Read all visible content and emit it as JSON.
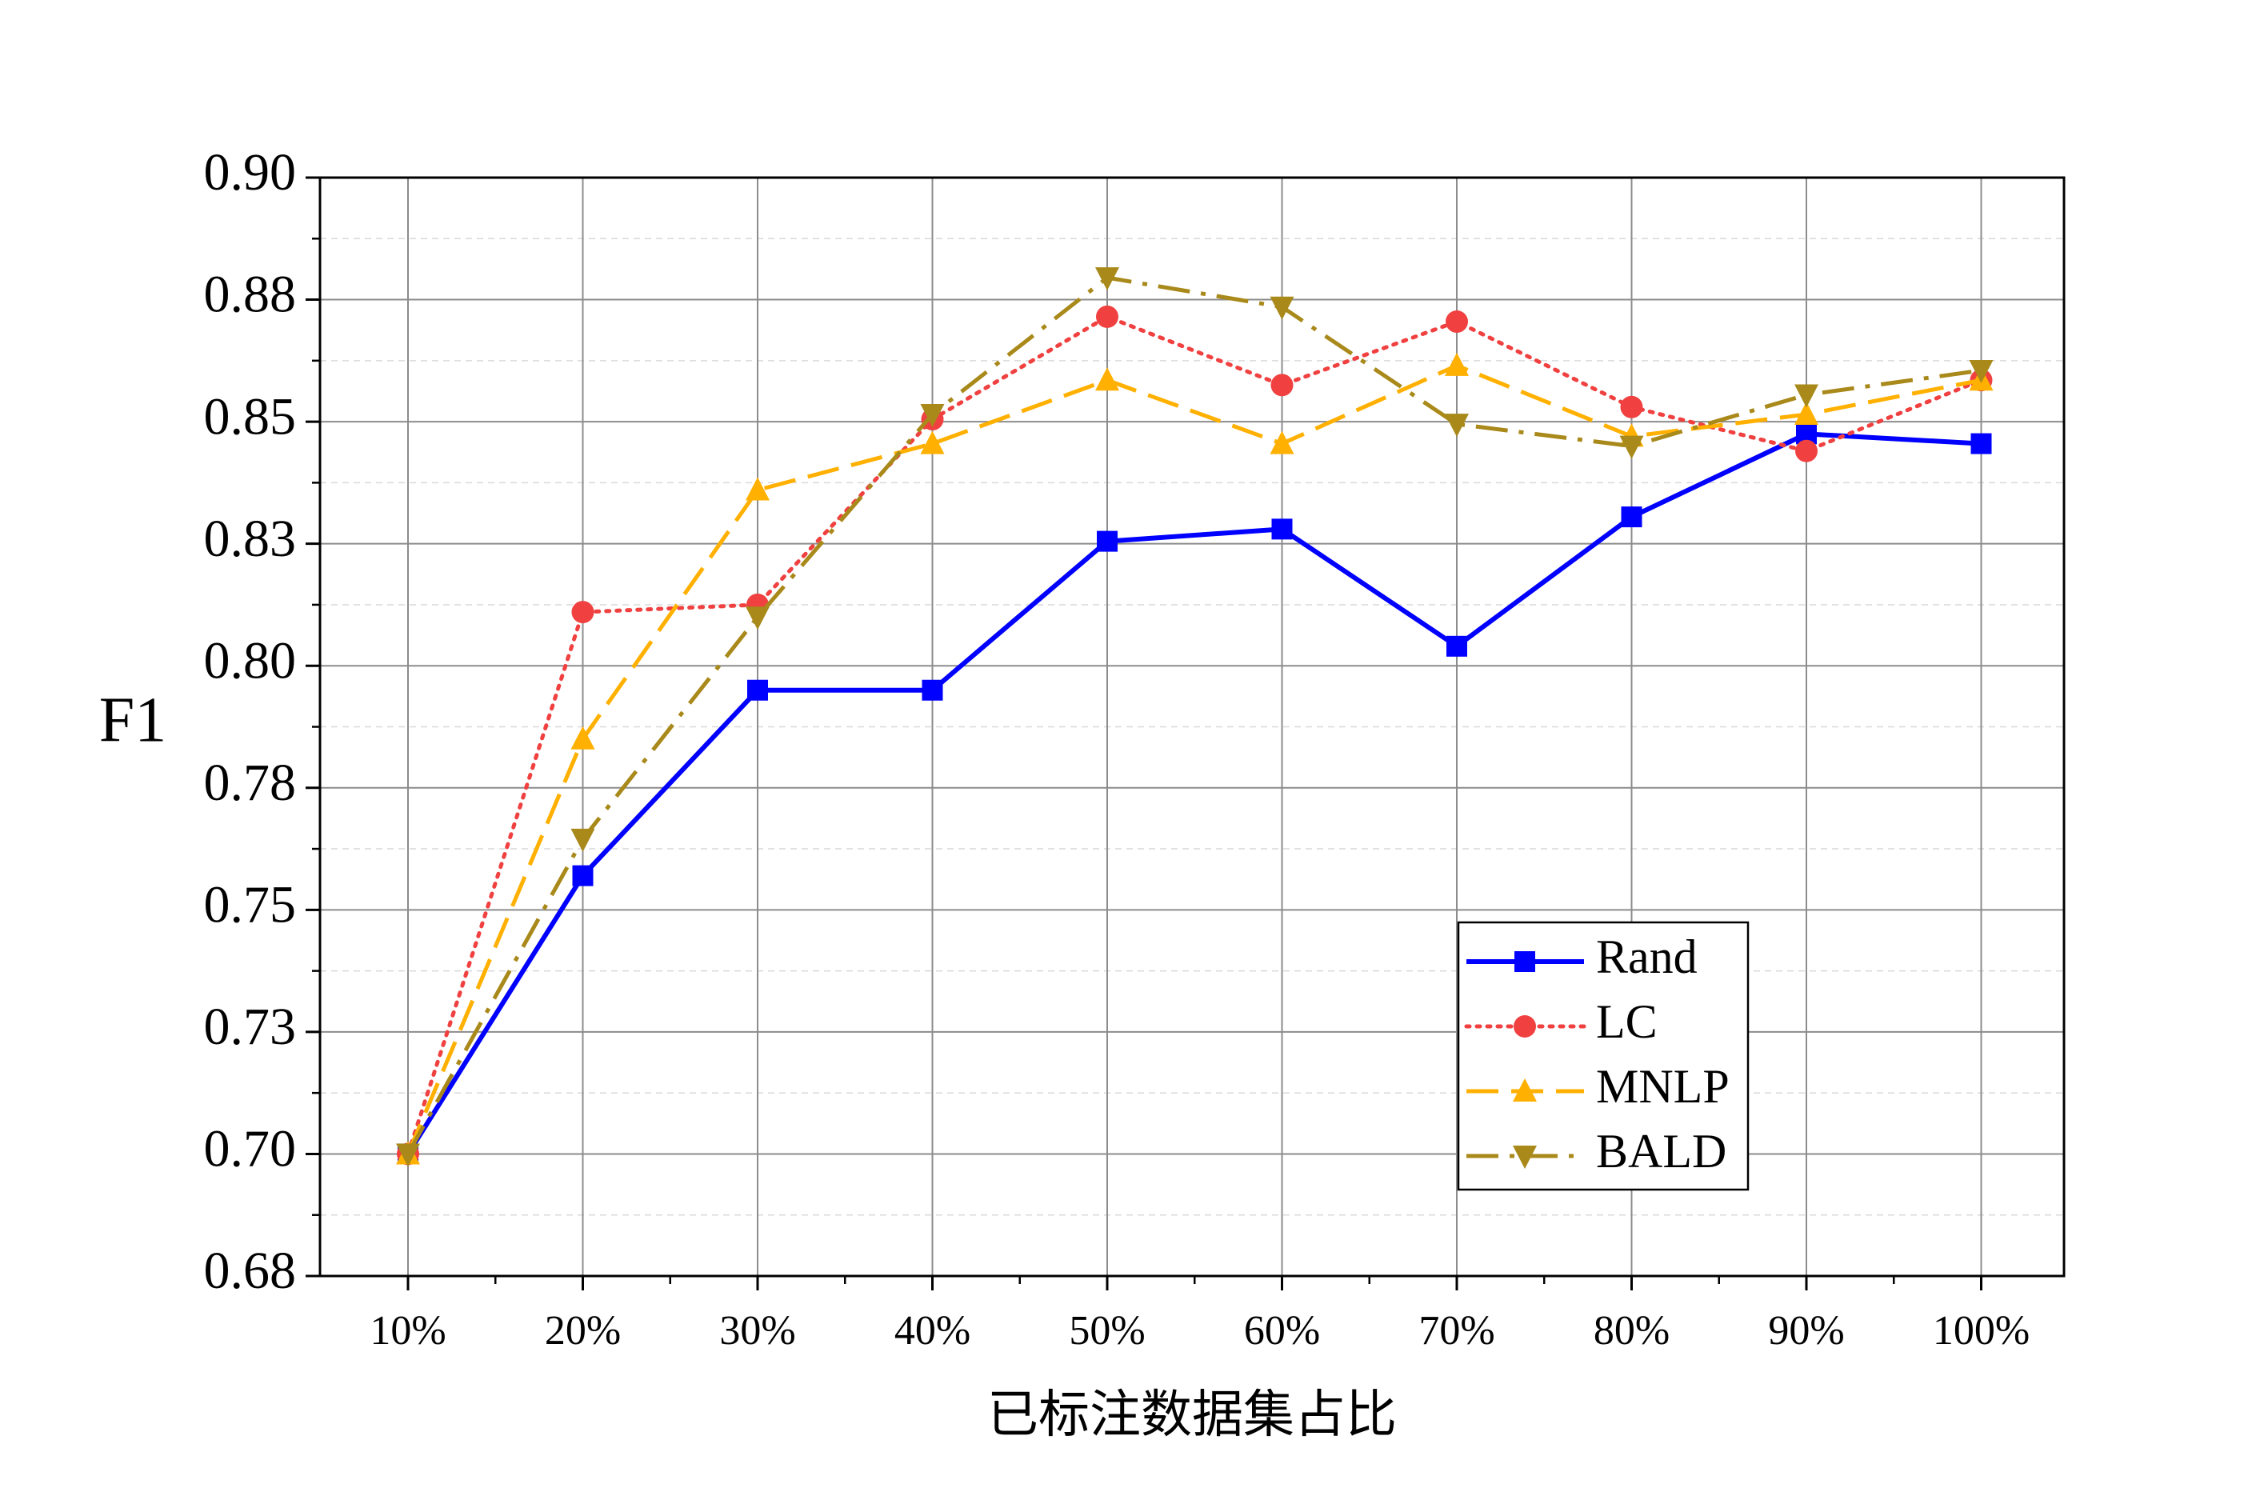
{
  "chart_data": {
    "type": "line",
    "title": "",
    "xlabel": "已标注数据集占比",
    "ylabel": "F1",
    "categories": [
      "10%",
      "20%",
      "30%",
      "40%",
      "50%",
      "60%",
      "70%",
      "80%",
      "90%",
      "100%"
    ],
    "ylim": [
      0.675,
      0.9
    ],
    "yticks": [
      0.9,
      0.875,
      0.85,
      0.825,
      0.8,
      0.775,
      0.75,
      0.725,
      0.7,
      0.675
    ],
    "ytick_labels": [
      "0.90",
      "0.88",
      "0.85",
      "0.83",
      "0.80",
      "0.78",
      "0.75",
      "0.73",
      "0.70",
      "0.68"
    ],
    "grid": true,
    "legend_position": "bottom-right",
    "series": [
      {
        "name": "Rand",
        "color": "#0000ff",
        "marker": "square",
        "line": "solid",
        "values": [
          0.7,
          0.757,
          0.795,
          0.795,
          0.8255,
          0.828,
          0.804,
          0.8305,
          0.8475,
          0.8455
        ]
      },
      {
        "name": "LC",
        "color": "#f04040",
        "marker": "circle",
        "line": "dotted",
        "values": [
          0.7,
          0.811,
          0.8125,
          0.8505,
          0.8715,
          0.8575,
          0.8705,
          0.853,
          0.844,
          0.8585
        ]
      },
      {
        "name": "MNLP",
        "color": "#ffb000",
        "marker": "triangle-up",
        "line": "dashed",
        "values": [
          0.7,
          0.785,
          0.836,
          0.8455,
          0.8585,
          0.8455,
          0.8615,
          0.847,
          0.8515,
          0.8585
        ]
      },
      {
        "name": "BALD",
        "color": "#a8891a",
        "marker": "triangle-down",
        "line": "dashdot",
        "values": [
          0.7,
          0.7645,
          0.81,
          0.8515,
          0.8795,
          0.8735,
          0.8495,
          0.845,
          0.8555,
          0.8605
        ]
      }
    ]
  }
}
